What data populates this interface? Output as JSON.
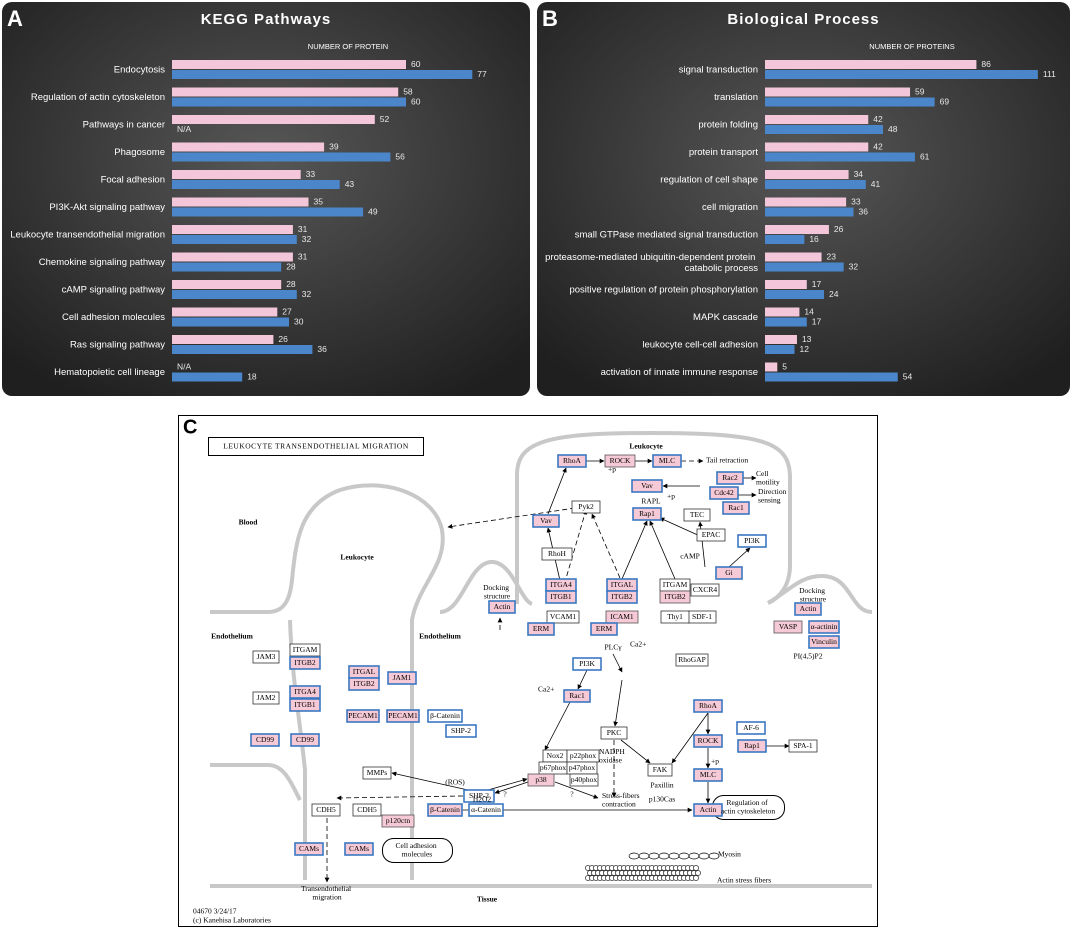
{
  "chart_data": [
    {
      "type": "bar",
      "orientation": "horizontal",
      "panel_label": "A",
      "title": "KEGG Pathways",
      "xlabel": "NUMBER OF PROTEIN",
      "categories": [
        "Endocytosis",
        "Regulation of actin cytoskeleton",
        "Pathways in cancer",
        "Phagosome",
        "Focal adhesion",
        "PI3K-Akt signaling pathway",
        "Leukocyte transendothelial migration",
        "Chemokine signaling pathway",
        "cAMP signaling pathway",
        "Cell adhesion molecules",
        "Ras signaling pathway",
        "Hematopoietic cell lineage"
      ],
      "series": [
        {
          "color": "#f3c6da",
          "values": [
            60,
            58,
            52,
            39,
            33,
            35,
            31,
            31,
            28,
            27,
            26,
            null
          ],
          "value_labels": [
            "60",
            "58",
            "52",
            "39",
            "33",
            "35",
            "31",
            "31",
            "28",
            "27",
            "26",
            "N/A"
          ]
        },
        {
          "color": "#4a86c9",
          "values": [
            77,
            60,
            null,
            56,
            43,
            49,
            32,
            28,
            32,
            30,
            36,
            18
          ],
          "value_labels": [
            "77",
            "60",
            "N/A",
            "56",
            "43",
            "49",
            "32",
            "28",
            "32",
            "30",
            "36",
            "18"
          ]
        }
      ],
      "xlim": [
        0,
        90
      ]
    },
    {
      "type": "bar",
      "orientation": "horizontal",
      "panel_label": "B",
      "title": "Biological Process",
      "xlabel": "NUMBER OF PROTEINS",
      "categories": [
        "signal transduction",
        "translation",
        "protein folding",
        "protein transport",
        "regulation of cell shape",
        "cell migration",
        "small GTPase mediated signal transduction",
        "proteasome-mediated ubiquitin-dependent protein catabolic process",
        "positive regulation of protein phosphorylation",
        "MAPK cascade",
        "leukocyte cell-cell adhesion",
        "activation of innate immune response"
      ],
      "series": [
        {
          "color": "#f3c6da",
          "values": [
            86,
            59,
            42,
            42,
            34,
            33,
            26,
            23,
            17,
            14,
            13,
            5
          ]
        },
        {
          "color": "#4a86c9",
          "values": [
            111,
            69,
            48,
            61,
            41,
            36,
            16,
            32,
            24,
            17,
            12,
            54
          ]
        }
      ],
      "xlim": [
        0,
        120
      ]
    }
  ],
  "diagram": {
    "panel_label": "C",
    "title": "LEUKOCYTE TRANSENDOTHELIAL MIGRATION",
    "nodes": [
      "RhoA",
      "ROCK",
      "MLC",
      "Rac2",
      "Cdc42",
      "Rac1",
      "Vav",
      "Pyk2",
      "Rap1",
      "TEC",
      "Vav",
      "EPAC",
      "PI3K",
      "RhoH",
      "Gi",
      "ITGA4",
      "ITGB1",
      "ITGAL",
      "ITGB2",
      "ITGAM",
      "ITGB2",
      "CXCR4",
      "SDF-1",
      "Actin",
      "VCAM1",
      "ICAM1",
      "Thy1",
      "ERM",
      "ERM",
      "Actin",
      "VASP",
      "α-actinin",
      "Vinculin",
      "RhoGAP",
      "PI3K",
      "Rac1",
      "JAM3",
      "ITGAM",
      "ITGB2",
      "JAM2",
      "ITGA4",
      "ITGB1",
      "ITGAL",
      "ITGB2",
      "JAM1",
      "PECAM1",
      "PECAM1",
      "β-Catenin",
      "CD99",
      "CD99",
      "SHP-2",
      "Nox2",
      "p22phox",
      "p67phox",
      "p47phox",
      "p40phox",
      "PKC",
      "RhoA",
      "AF-6",
      "Rap1",
      "SPA-1",
      "FAK",
      "ROCK",
      "MLC",
      "Actin",
      "p38",
      "MMPs",
      "SHP-2",
      "CDH5",
      "CDH5",
      "p120ctn",
      "β-Catenin",
      "α-Catenin",
      "CAMs",
      "CAMs"
    ],
    "labels": [
      "Leukocyte",
      "Blood",
      "Leukocyte",
      "Endothelium",
      "Endothelium",
      "Tissue",
      "Docking structure",
      "Docking structure",
      "Tail retraction",
      "Cell motility",
      "Direction sensing",
      "RAPL",
      "cAMP",
      "PLCγ",
      "Ca2+",
      "Ca2+",
      "PI(4,5)P2",
      "(ROS)",
      "H2O2",
      "NADPH oxidase",
      "Paxillin",
      "p130Cas",
      "Stress-fibers contraction",
      "?",
      "?",
      "+p",
      "+p",
      "+p",
      "Myosin",
      "Actin stress fibers",
      "Regulation of actin cytoskeleton",
      "Cell adhesion molecules",
      "Transendothelial migration",
      "04670 3/24/17",
      "(c) Kanehisa Laboratories"
    ]
  }
}
